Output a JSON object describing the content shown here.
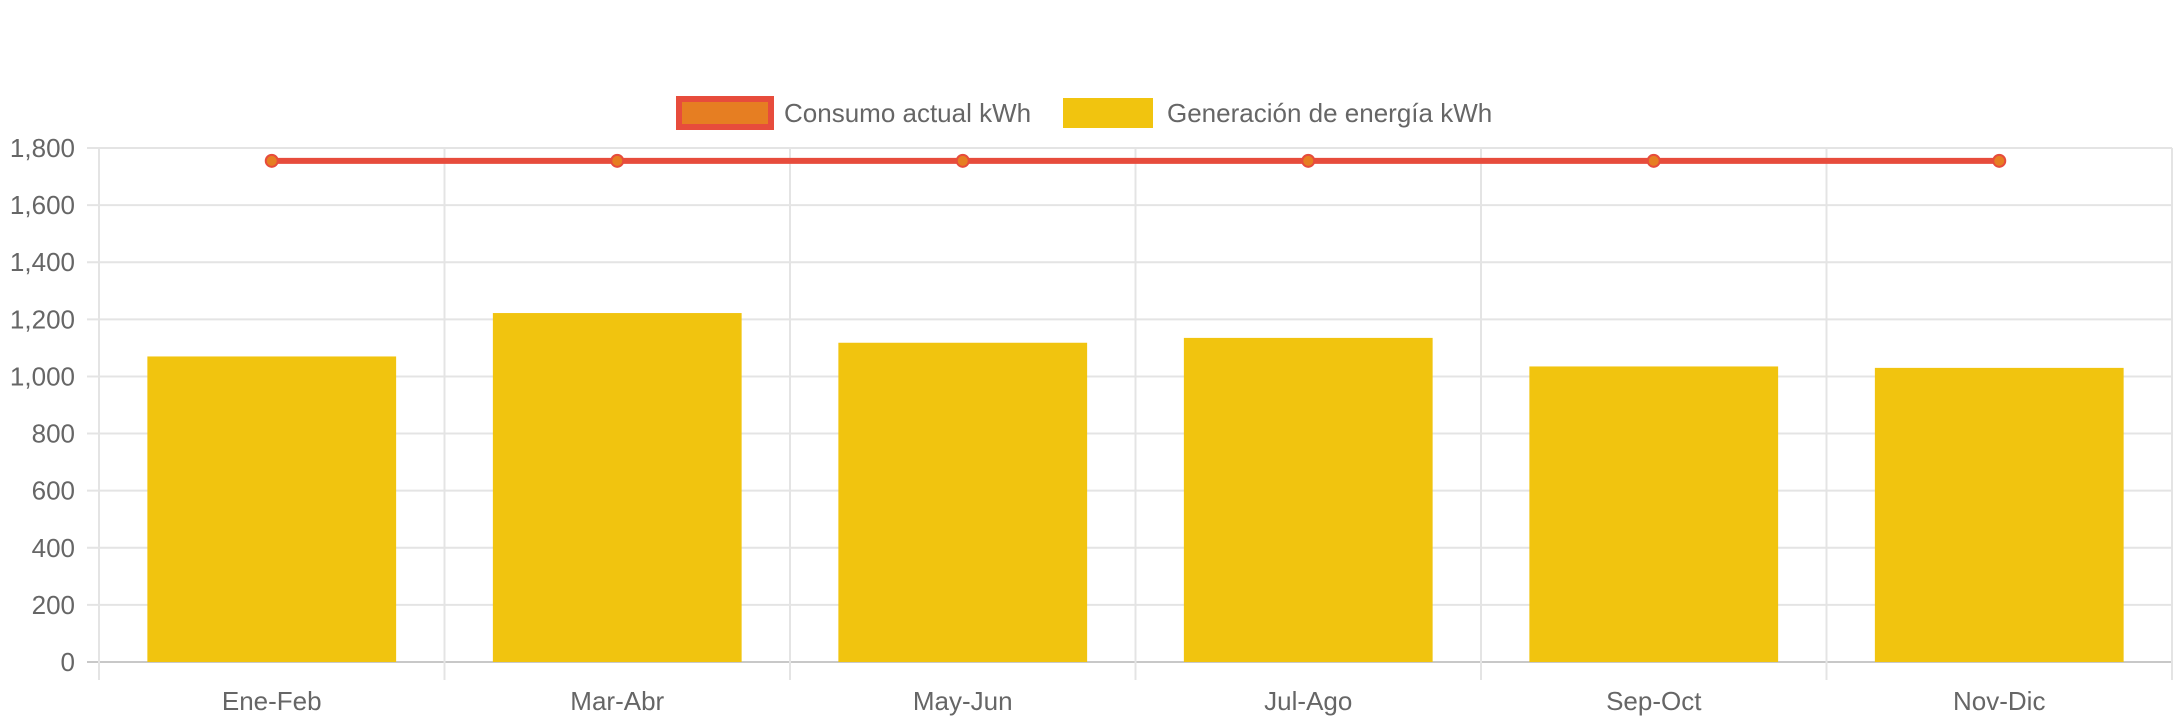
{
  "chart_data": {
    "type": "bar",
    "categories": [
      "Ene-Feb",
      "Mar-Abr",
      "May-Jun",
      "Jul-Ago",
      "Sep-Oct",
      "Nov-Dic"
    ],
    "series": [
      {
        "name": "Consumo actual kWh",
        "type": "line",
        "values": [
          1755,
          1755,
          1755,
          1755,
          1755,
          1755
        ],
        "color": "#e74c3c",
        "fill_color": "#e67e22"
      },
      {
        "name": "Generación de energía kWh",
        "type": "bar",
        "values": [
          1070,
          1222,
          1118,
          1135,
          1035,
          1030
        ],
        "color": "#f1c40f"
      }
    ],
    "ylim": [
      0,
      1800
    ],
    "yticks": [
      "0",
      "200",
      "400",
      "600",
      "800",
      "1,000",
      "1,200",
      "1,400",
      "1,600",
      "1,800"
    ],
    "grid": true,
    "legend": "top-center"
  }
}
